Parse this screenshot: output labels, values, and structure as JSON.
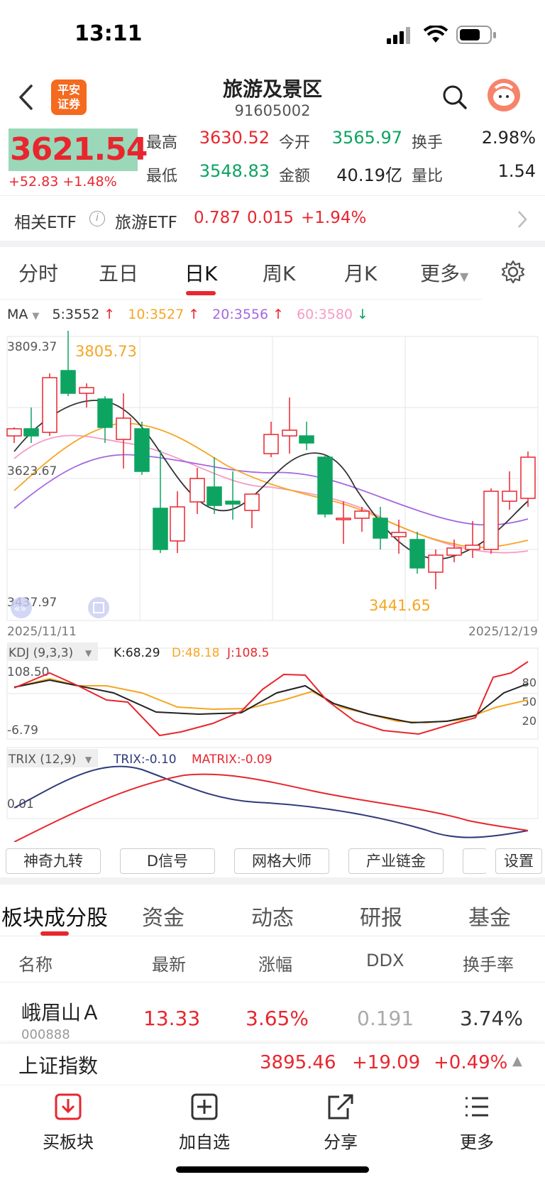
{
  "status": {
    "time": "13:11"
  },
  "header": {
    "logo_text_1": "平安",
    "logo_text_2": "证券",
    "title": "旅游及景区",
    "code": "91605002"
  },
  "quote": {
    "price": "3621.54",
    "change": "+52.83",
    "change_pct": "+1.48%",
    "high_label": "最高",
    "high": "3630.52",
    "open_label": "今开",
    "open": "3565.97",
    "turnover_label": "换手",
    "turnover": "2.98%",
    "low_label": "最低",
    "low": "3548.83",
    "amount_label": "金额",
    "amount": "40.19亿",
    "vol_ratio_label": "量比",
    "vol_ratio": "1.54"
  },
  "etf": {
    "label": "相关ETF",
    "info": "i",
    "name": "旅游ETF",
    "price": "0.787",
    "change": "0.015",
    "pct": "+1.94%"
  },
  "chart_tabs": [
    "分时",
    "五日",
    "日K",
    "周K",
    "月K",
    "更多"
  ],
  "ma": {
    "label": "MA",
    "ma5": "5:3552",
    "ma10": "10:3527",
    "ma20": "20:3556",
    "ma60": "60:3580"
  },
  "kline": {
    "y_top": "3809.37",
    "y_mid": "3623.67",
    "y_bottom": "3437.97",
    "max_label": "3805.73",
    "min_label": "3441.65",
    "date_start": "2025/11/11",
    "date_end": "2025/12/19"
  },
  "kdj": {
    "label": "KDJ (9,3,3)",
    "k": "K:68.29",
    "d": "D:48.18",
    "j": "J:108.5",
    "y_top": "108.50",
    "y_bottom": "-6.79",
    "lvl80": "80",
    "lvl50": "50",
    "lvl20": "20"
  },
  "trix": {
    "label": "TRIX (12,9)",
    "trix": "TRIX:-0.10",
    "matrix": "MATRIX:-0.09",
    "y_mid": "0.01"
  },
  "tools": [
    "神奇九转",
    "D信号",
    "网格大师",
    "产业链金",
    "设置"
  ],
  "subtabs": [
    "板块成分股",
    "资金",
    "动态",
    "研报",
    "基金"
  ],
  "table": {
    "headers": [
      "名称",
      "最新",
      "涨幅",
      "DDX",
      "换手率"
    ],
    "rows": [
      {
        "name": "峨眉山Ａ",
        "code": "000888",
        "price": "13.33",
        "pct": "3.65%",
        "ddx": "0.191",
        "turnover": "3.74%"
      }
    ]
  },
  "index": {
    "name": "上证指数",
    "value": "3895.46",
    "change": "+19.09",
    "pct": "+0.49%"
  },
  "bottom_nav": [
    "买板块",
    "加自选",
    "分享",
    "更多"
  ],
  "colors": {
    "up": "#e8262e",
    "down": "#0ca460",
    "ma5": "#333333",
    "ma10": "#f5a623",
    "ma20": "#a467e0",
    "ma60": "#f59bc4"
  }
}
